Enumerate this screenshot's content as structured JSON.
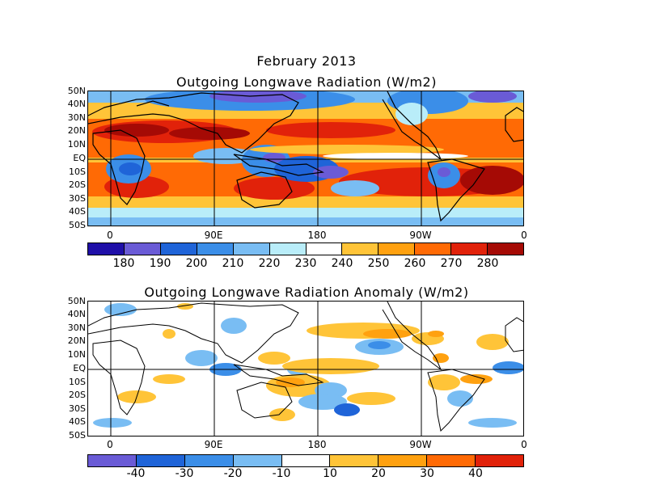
{
  "header": {
    "month": "February 2013",
    "top_title": "Outgoing Longwave Radiation (W/m2)",
    "bottom_title": "Outgoing Longwave Radiation Anomaly (W/m2)"
  },
  "axes": {
    "lat_labels": [
      "50N",
      "40N",
      "30N",
      "20N",
      "10N",
      "EQ",
      "10S",
      "20S",
      "30S",
      "40S",
      "50S"
    ],
    "lon_labels": [
      "0",
      "90E",
      "180",
      "90W",
      "0"
    ]
  },
  "colorbar_top": {
    "labels": [
      "180",
      "190",
      "200",
      "210",
      "220",
      "230",
      "240",
      "250",
      "260",
      "270",
      "280"
    ],
    "colors": [
      "#1f0fa8",
      "#6a5bd6",
      "#1f64d8",
      "#3b8ee8",
      "#79bdf3",
      "#b9edf9",
      "#ffffff",
      "#ffc438",
      "#ffa110",
      "#ff6a05",
      "#e1220a",
      "#a50a05"
    ]
  },
  "colorbar_bottom": {
    "labels": [
      "-40",
      "-30",
      "-20",
      "-10",
      "10",
      "20",
      "30",
      "40"
    ],
    "colors": [
      "#6a5bd6",
      "#1f64d8",
      "#3b8ee8",
      "#79bdf3",
      "#ffffff",
      "#ffc438",
      "#ffa110",
      "#ff6a05",
      "#e1220a"
    ]
  },
  "colors": {
    "land_outline": "#000000",
    "grid_line": "#000000"
  }
}
